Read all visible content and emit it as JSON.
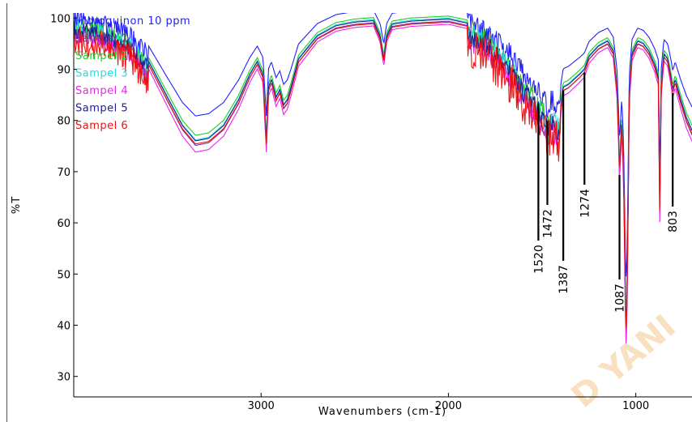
{
  "watermark": "D YANI",
  "chart_data": {
    "type": "line",
    "xlabel": "Wavenumbers (cm-1)",
    "ylabel": "%T",
    "xlim": [
      4000,
      700
    ],
    "ylim": [
      26,
      101
    ],
    "x_reversed": true,
    "xticks": [
      3000,
      2000,
      1000
    ],
    "yticks": [
      30,
      40,
      50,
      60,
      70,
      80,
      90,
      100
    ],
    "grid": false,
    "legend_position": "top-left",
    "series": [
      {
        "name": "Hidroquinon 10 ppm",
        "color": "#2020ff",
        "offset": 2.0,
        "scale": 0.88
      },
      {
        "name": "Sampel 1",
        "color": "#7b2f9f",
        "offset": -0.4,
        "scale": 1.02
      },
      {
        "name": "Sampel 2",
        "color": "#22cc22",
        "offset": 0.6,
        "scale": 0.98
      },
      {
        "name": "Sampel 3",
        "color": "#22dddd",
        "offset": 0.2,
        "scale": 1.0
      },
      {
        "name": "Sampel 4",
        "color": "#ee22ee",
        "offset": -1.0,
        "scale": 1.05
      },
      {
        "name": "Sampel 5",
        "color": "#202090",
        "offset": 0.0,
        "scale": 1.0
      },
      {
        "name": "Sampel 6",
        "color": "#ee1111",
        "offset": -0.6,
        "scale": 1.0
      }
    ],
    "base_spectrum": [
      [
        4000,
        99.5
      ],
      [
        3850,
        98.5
      ],
      [
        3700,
        96.0
      ],
      [
        3600,
        91.5
      ],
      [
        3500,
        84.5
      ],
      [
        3420,
        79.0
      ],
      [
        3350,
        76.0
      ],
      [
        3280,
        76.5
      ],
      [
        3200,
        79.0
      ],
      [
        3120,
        84.0
      ],
      [
        3060,
        89.0
      ],
      [
        3020,
        91.5
      ],
      [
        2990,
        89.0
      ],
      [
        2972,
        76.0
      ],
      [
        2960,
        86.5
      ],
      [
        2945,
        88.0
      ],
      [
        2920,
        84.5
      ],
      [
        2900,
        86.0
      ],
      [
        2880,
        83.0
      ],
      [
        2860,
        84.0
      ],
      [
        2840,
        86.5
      ],
      [
        2800,
        92.0
      ],
      [
        2700,
        96.5
      ],
      [
        2600,
        98.5
      ],
      [
        2500,
        99.2
      ],
      [
        2400,
        99.5
      ],
      [
        2365,
        96.5
      ],
      [
        2345,
        92.0
      ],
      [
        2330,
        96.5
      ],
      [
        2300,
        98.8
      ],
      [
        2200,
        99.4
      ],
      [
        2000,
        99.8
      ],
      [
        1900,
        99.0
      ],
      [
        1800,
        97.5
      ],
      [
        1700,
        93.5
      ],
      [
        1650,
        91.0
      ],
      [
        1600,
        88.0
      ],
      [
        1560,
        86.0
      ],
      [
        1520,
        84.0
      ],
      [
        1490,
        82.5
      ],
      [
        1472,
        80.5
      ],
      [
        1450,
        82.5
      ],
      [
        1430,
        81.0
      ],
      [
        1410,
        80.0
      ],
      [
        1395,
        84.5
      ],
      [
        1387,
        86.5
      ],
      [
        1360,
        87.0
      ],
      [
        1330,
        88.0
      ],
      [
        1300,
        89.0
      ],
      [
        1274,
        90.0
      ],
      [
        1250,
        92.5
      ],
      [
        1200,
        94.5
      ],
      [
        1150,
        95.5
      ],
      [
        1120,
        93.5
      ],
      [
        1100,
        86.0
      ],
      [
        1090,
        75.0
      ],
      [
        1087,
        70.0
      ],
      [
        1075,
        80.0
      ],
      [
        1065,
        70.0
      ],
      [
        1055,
        44.0
      ],
      [
        1050,
        38.0
      ],
      [
        1042,
        60.0
      ],
      [
        1035,
        85.0
      ],
      [
        1020,
        93.0
      ],
      [
        990,
        95.5
      ],
      [
        960,
        95.0
      ],
      [
        930,
        93.5
      ],
      [
        900,
        91.0
      ],
      [
        880,
        88.5
      ],
      [
        872,
        63.0
      ],
      [
        865,
        86.0
      ],
      [
        850,
        93.0
      ],
      [
        830,
        92.0
      ],
      [
        810,
        88.0
      ],
      [
        803,
        86.0
      ],
      [
        790,
        88.0
      ],
      [
        760,
        84.0
      ],
      [
        730,
        80.5
      ],
      [
        700,
        78.0
      ]
    ],
    "peak_labels": [
      {
        "label": "1520",
        "x": 1520,
        "y": 84.0
      },
      {
        "label": "1472",
        "x": 1472,
        "y": 80.5
      },
      {
        "label": "1387",
        "x": 1387,
        "y": 86.5
      },
      {
        "label": "1274",
        "x": 1274,
        "y": 90.0
      },
      {
        "label": "1087",
        "x": 1087,
        "y": 70.0
      },
      {
        "label": "803",
        "x": 803,
        "y": 86.0
      }
    ]
  }
}
